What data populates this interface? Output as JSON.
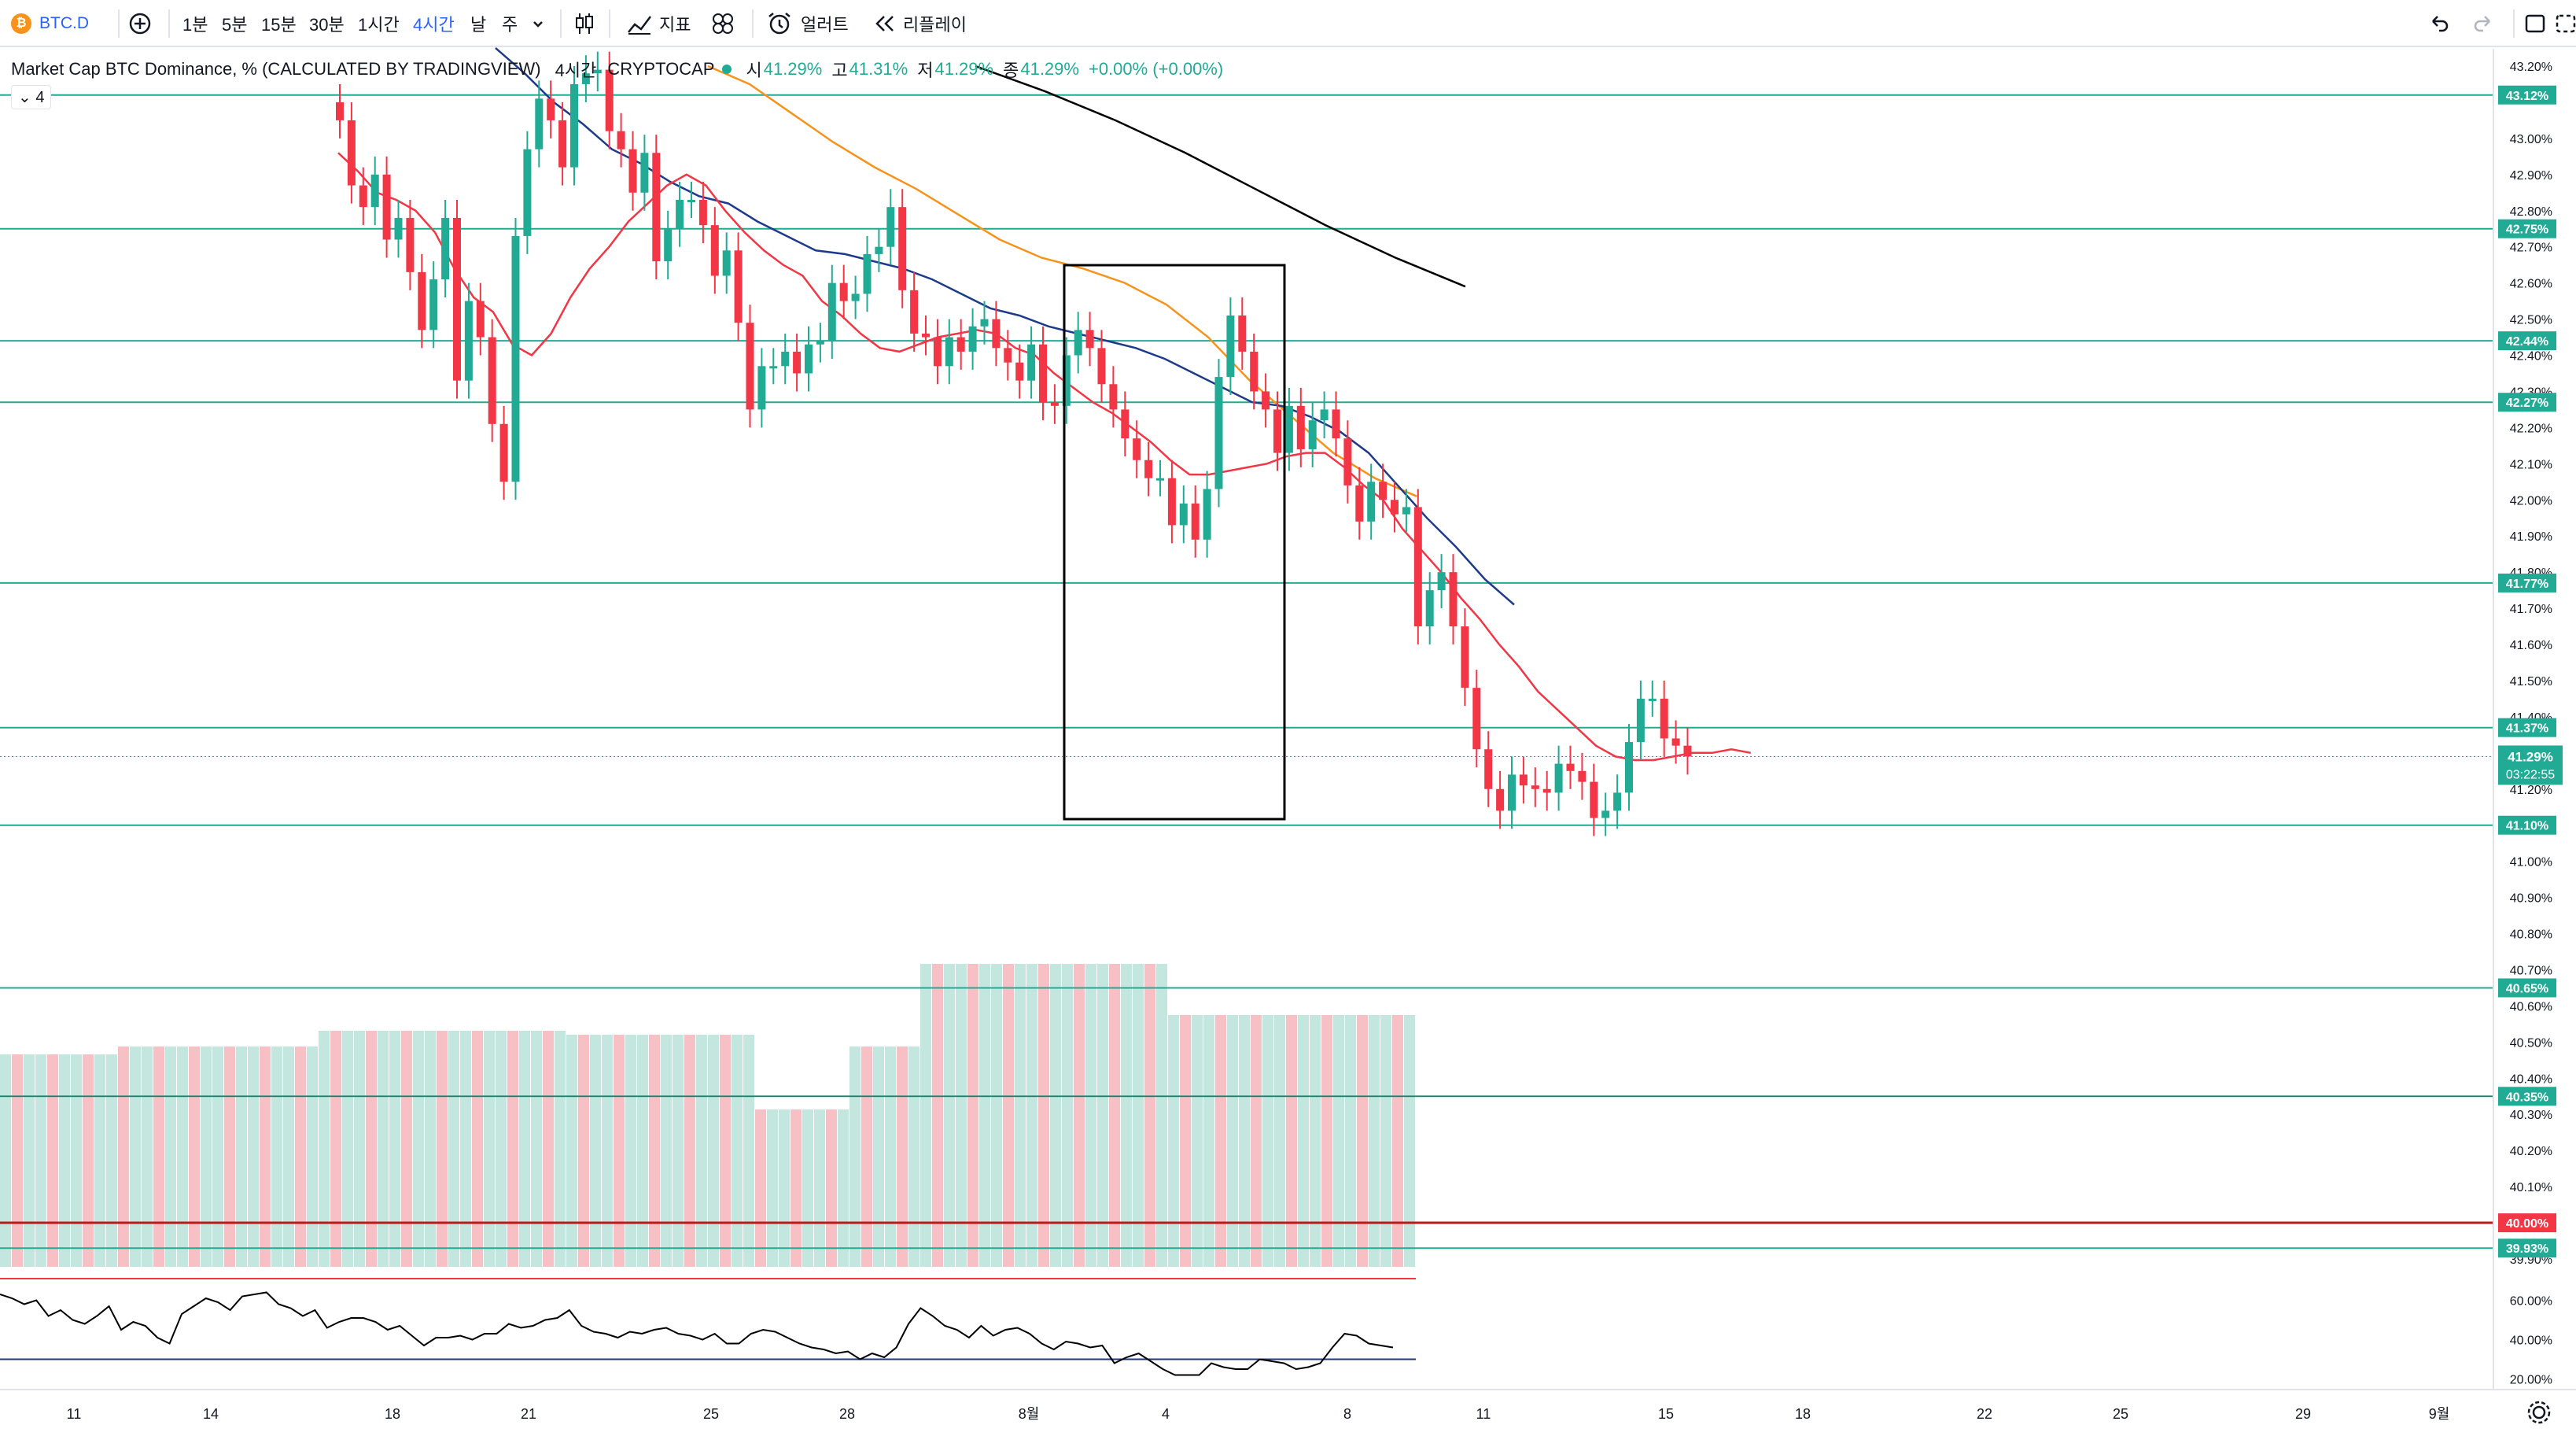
{
  "toolbar": {
    "symbol": "BTC.D",
    "intervals": [
      "1분",
      "5분",
      "15분",
      "30분",
      "1시간",
      "4시간",
      "날",
      "주"
    ],
    "active_interval": "4시간",
    "indicators_label": "지표",
    "alert_label": "얼러트",
    "replay_label": "리플레이"
  },
  "legend": {
    "title": "Market Cap BTC Dominance, % (CALCULATED BY TRADINGVIEW)",
    "interval": "4시간",
    "exchange": "CRYPTOCAP",
    "open_label": "시",
    "open": "41.29%",
    "high_label": "고",
    "high": "41.31%",
    "low_label": "저",
    "low": "41.29%",
    "close_label": "종",
    "close": "41.29%",
    "change": "+0.00% (+0.00%)",
    "indicator_count": "4"
  },
  "price_axis": {
    "ticks": [
      "43.20%",
      "43.00%",
      "42.90%",
      "42.80%",
      "42.70%",
      "42.60%",
      "42.50%",
      "42.40%",
      "42.30%",
      "42.20%",
      "42.10%",
      "42.00%",
      "41.90%",
      "41.80%",
      "41.70%",
      "41.60%",
      "41.50%",
      "41.40%",
      "41.20%",
      "41.00%",
      "40.90%",
      "40.80%",
      "40.70%",
      "40.60%",
      "40.50%",
      "40.40%",
      "40.30%",
      "40.20%",
      "40.10%",
      "39.90%"
    ],
    "level_labels": [
      "43.12%",
      "42.75%",
      "42.44%",
      "42.27%",
      "41.77%",
      "41.37%",
      "41.10%",
      "40.65%",
      "40.35%",
      "39.93%"
    ],
    "current_price": "41.29%",
    "countdown": "03:22:55",
    "red_line_label": "40.00%"
  },
  "rsi_axis": {
    "ticks": [
      "60.00%",
      "40.00%",
      "20.00%"
    ]
  },
  "time_axis": {
    "labels": [
      "11",
      "14",
      "18",
      "21",
      "25",
      "28",
      "8월",
      "4",
      "8",
      "11",
      "15",
      "18",
      "22",
      "25",
      "29",
      "9월"
    ]
  },
  "colors": {
    "up": "#22ab94",
    "down": "#f23645",
    "level": "#22ab94",
    "ema_fast": "#f23645",
    "ema_mid": "#1e3a8a",
    "ema_slow": "#f7931a",
    "ema_long": "#000000"
  },
  "chart_data": {
    "type": "candlestick",
    "symbol": "BTC.D",
    "interval": "4시간",
    "ylim": [
      39.85,
      43.25
    ],
    "horizontal_levels": [
      43.12,
      42.75,
      42.44,
      42.27,
      41.77,
      41.37,
      41.1,
      40.65,
      40.35,
      39.93
    ],
    "red_level": 40.0,
    "last_price": 41.29,
    "annotation": "rectangle highlighting the drop from about 42.65% to 41.10% (Aug 1 – Aug 6)",
    "closes": [
      43.05,
      42.87,
      42.81,
      42.9,
      42.72,
      42.78,
      42.63,
      42.47,
      42.61,
      42.78,
      42.33,
      42.55,
      42.45,
      42.21,
      42.05,
      42.73,
      42.97,
      43.11,
      43.05,
      42.92,
      43.15,
      43.18,
      43.19,
      43.02,
      42.97,
      42.85,
      42.96,
      42.66,
      42.75,
      42.83,
      42.83,
      42.76,
      42.62,
      42.69,
      42.49,
      42.25,
      42.37,
      42.37,
      42.41,
      42.35,
      42.43,
      42.44,
      42.6,
      42.55,
      42.57,
      42.68,
      42.7,
      42.81,
      42.58,
      42.46,
      42.45,
      42.37,
      42.45,
      42.41,
      42.48,
      42.5,
      42.42,
      42.38,
      42.33,
      42.43,
      42.27,
      42.26,
      42.4,
      42.47,
      42.42,
      42.32,
      42.25,
      42.17,
      42.11,
      42.06,
      42.06,
      41.93,
      41.99,
      41.89,
      42.03,
      42.34,
      42.51,
      42.41,
      42.3,
      42.25,
      42.13,
      42.26,
      42.14,
      42.22,
      42.25,
      42.17,
      42.04,
      41.94,
      42.05,
      42.0,
      41.96,
      41.98,
      41.65,
      41.75,
      41.8,
      41.65,
      41.48,
      41.31,
      41.2,
      41.14,
      41.24,
      41.21,
      41.2,
      41.19,
      41.27,
      41.25,
      41.22,
      41.12,
      41.14,
      41.19,
      41.33,
      41.45,
      41.45,
      41.34,
      41.32,
      41.29
    ],
    "ema_20": [
      42.96,
      42.91,
      42.85,
      42.83,
      42.8,
      42.74,
      42.64,
      42.56,
      42.52,
      42.43,
      42.4,
      42.46,
      42.56,
      42.64,
      42.7,
      42.77,
      42.82,
      42.87,
      42.9,
      42.87,
      42.8,
      42.74,
      42.69,
      42.65,
      42.62,
      42.55,
      42.51,
      42.46,
      42.42,
      42.41,
      42.43,
      42.45,
      42.46,
      42.47,
      42.46,
      42.42,
      42.4,
      42.35,
      42.31,
      42.27,
      42.24,
      42.2,
      42.16,
      42.11,
      42.07,
      42.07,
      42.08,
      42.09,
      42.1,
      42.12,
      42.13,
      42.13,
      42.09,
      42.04,
      42.0,
      41.92,
      41.86,
      41.8,
      41.73,
      41.67,
      41.6,
      41.54,
      41.47,
      41.42,
      41.37,
      41.32,
      41.29,
      41.28,
      41.28,
      41.29,
      41.3,
      41.3,
      41.31,
      41.3
    ],
    "ema_50": [
      43.25,
      43.18,
      43.1,
      43.04,
      42.97,
      42.93,
      42.88,
      42.84,
      42.82,
      42.77,
      42.73,
      42.69,
      42.68,
      42.66,
      42.64,
      42.61,
      42.57,
      42.53,
      42.51,
      42.48,
      42.46,
      42.44,
      42.42,
      42.39,
      42.35,
      42.31,
      42.27,
      42.26,
      42.23,
      42.19,
      42.13,
      42.04,
      41.95,
      41.87,
      41.78,
      41.71
    ],
    "ema_100": [
      43.2,
      43.15,
      43.07,
      42.99,
      42.92,
      42.86,
      42.79,
      42.72,
      42.67,
      42.64,
      42.6,
      42.54,
      42.45,
      42.33,
      42.23,
      42.13,
      42.06,
      42.01
    ],
    "ema_200": [
      43.2,
      43.13,
      43.05,
      42.96,
      42.86,
      42.76,
      42.67,
      42.59
    ],
    "volume_note": "volume bars in lower pane, values not labeled",
    "rsi": {
      "ylim": [
        20,
        70
      ],
      "levels": [
        30,
        70
      ],
      "values": [
        63,
        61,
        58,
        60,
        52,
        55,
        50,
        48,
        52,
        57,
        45,
        49,
        47,
        41,
        38,
        53,
        57,
        61,
        59,
        55,
        62,
        63,
        64,
        58,
        56,
        52,
        55,
        46,
        49,
        51,
        51,
        49,
        45,
        47,
        42,
        37,
        41,
        41,
        42,
        40,
        43,
        43,
        48,
        46,
        47,
        50,
        51,
        55,
        47,
        44,
        43,
        41,
        44,
        43,
        45,
        46,
        43,
        42,
        40,
        43,
        38,
        38,
        43,
        45,
        44,
        41,
        38,
        36,
        35,
        33,
        34,
        30,
        33,
        31,
        36,
        48,
        56,
        52,
        47,
        45,
        41,
        47,
        42,
        45,
        46,
        43,
        38,
        35,
        39,
        38,
        36,
        37,
        28,
        31,
        33,
        29,
        25,
        22,
        22,
        22,
        28,
        26,
        25,
        25,
        30,
        29,
        28,
        25,
        26,
        28,
        36,
        43,
        42,
        38,
        37,
        36
      ]
    }
  }
}
